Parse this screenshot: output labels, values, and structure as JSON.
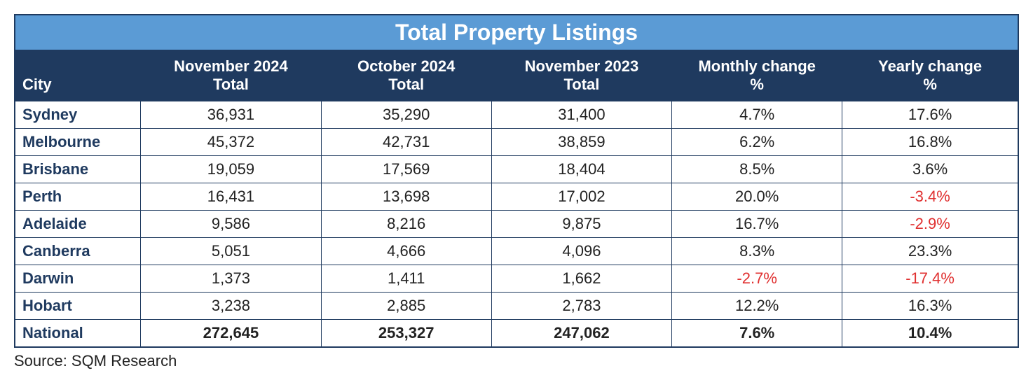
{
  "table": {
    "title": "Total Property Listings",
    "columns": [
      {
        "label": "City",
        "align": "left"
      },
      {
        "line1": "November 2024",
        "line2": "Total"
      },
      {
        "line1": "October 2024",
        "line2": "Total"
      },
      {
        "line1": "November 2023",
        "line2": "Total"
      },
      {
        "line1": "Monthly change",
        "line2": "%"
      },
      {
        "line1": "Yearly change",
        "line2": "%"
      }
    ],
    "column_widths_pct": [
      12.5,
      18,
      17,
      18,
      17,
      17.5
    ],
    "colors": {
      "title_bg": "#5b9bd5",
      "header_bg": "#1f3a5f",
      "border": "#1f3a5f",
      "text": "#222222",
      "city_text": "#1f3a5f",
      "negative": "#e03030",
      "background": "#ffffff"
    },
    "font_sizes_pt": {
      "title": 24,
      "header": 16,
      "body": 16
    },
    "rows": [
      {
        "city": "Sydney",
        "nov24": "36,931",
        "oct24": "35,290",
        "nov23": "31,400",
        "monthly": "4.7%",
        "monthly_neg": false,
        "yearly": "17.6%",
        "yearly_neg": false,
        "total": false
      },
      {
        "city": "Melbourne",
        "nov24": "45,372",
        "oct24": "42,731",
        "nov23": "38,859",
        "monthly": "6.2%",
        "monthly_neg": false,
        "yearly": "16.8%",
        "yearly_neg": false,
        "total": false
      },
      {
        "city": "Brisbane",
        "nov24": "19,059",
        "oct24": "17,569",
        "nov23": "18,404",
        "monthly": "8.5%",
        "monthly_neg": false,
        "yearly": "3.6%",
        "yearly_neg": false,
        "total": false
      },
      {
        "city": "Perth",
        "nov24": "16,431",
        "oct24": "13,698",
        "nov23": "17,002",
        "monthly": "20.0%",
        "monthly_neg": false,
        "yearly": "-3.4%",
        "yearly_neg": true,
        "total": false
      },
      {
        "city": "Adelaide",
        "nov24": "9,586",
        "oct24": "8,216",
        "nov23": "9,875",
        "monthly": "16.7%",
        "monthly_neg": false,
        "yearly": "-2.9%",
        "yearly_neg": true,
        "total": false
      },
      {
        "city": "Canberra",
        "nov24": "5,051",
        "oct24": "4,666",
        "nov23": "4,096",
        "monthly": "8.3%",
        "monthly_neg": false,
        "yearly": "23.3%",
        "yearly_neg": false,
        "total": false
      },
      {
        "city": "Darwin",
        "nov24": "1,373",
        "oct24": "1,411",
        "nov23": "1,662",
        "monthly": "-2.7%",
        "monthly_neg": true,
        "yearly": "-17.4%",
        "yearly_neg": true,
        "total": false
      },
      {
        "city": "Hobart",
        "nov24": "3,238",
        "oct24": "2,885",
        "nov23": "2,783",
        "monthly": "12.2%",
        "monthly_neg": false,
        "yearly": "16.3%",
        "yearly_neg": false,
        "total": false
      },
      {
        "city": "National",
        "nov24": "272,645",
        "oct24": "253,327",
        "nov23": "247,062",
        "monthly": "7.6%",
        "monthly_neg": false,
        "yearly": "10.4%",
        "yearly_neg": false,
        "total": true
      }
    ]
  },
  "source": "Source: SQM Research"
}
